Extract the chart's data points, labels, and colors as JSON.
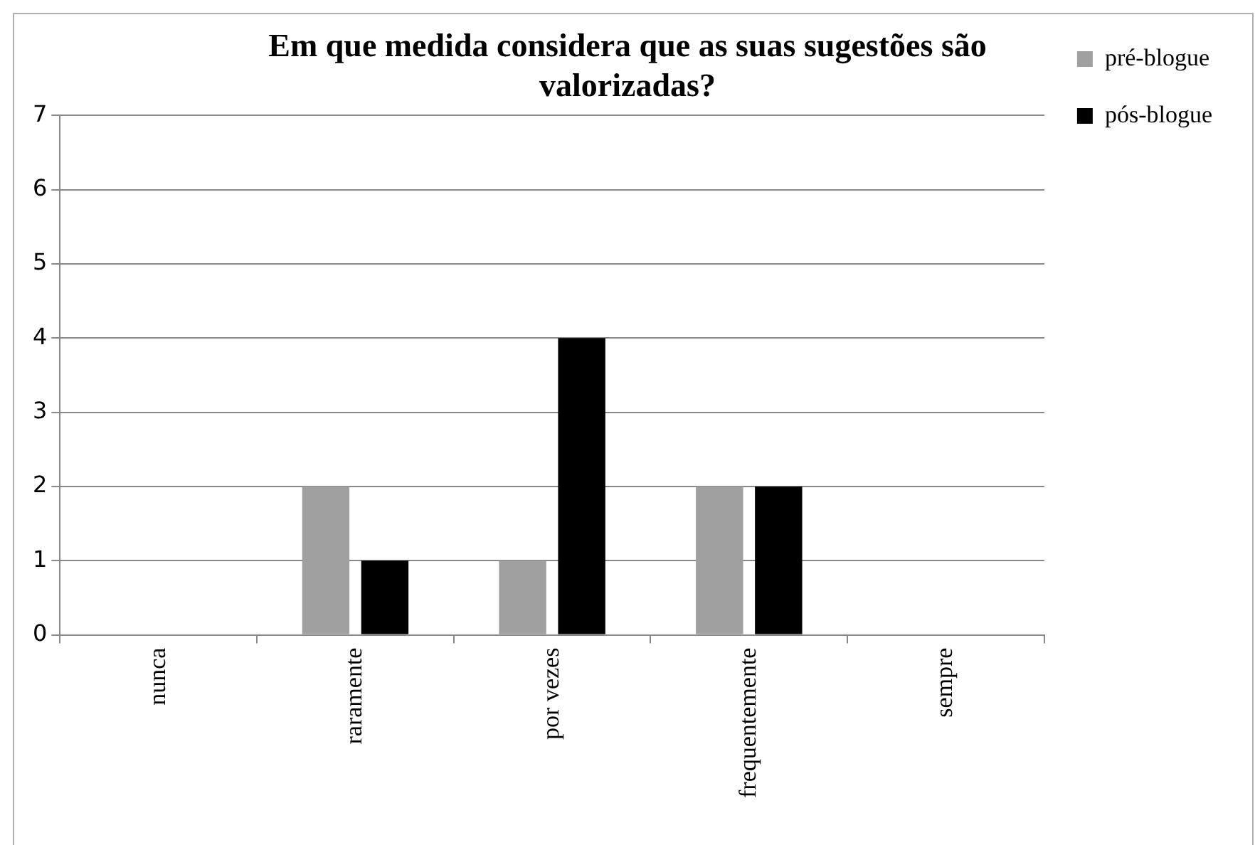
{
  "chart_data": {
    "type": "bar",
    "title": "Em que medida considera que as suas sugestões são valorizadas?",
    "categories": [
      "nunca",
      "raramente",
      "por vezes",
      "frequentemente",
      "sempre"
    ],
    "series": [
      {
        "name": "pré-blogue",
        "color": "#a0a0a0",
        "values": [
          0,
          2,
          1,
          2,
          0
        ]
      },
      {
        "name": "pós-blogue",
        "color": "#000000",
        "values": [
          0,
          1,
          4,
          2,
          0
        ]
      }
    ],
    "ylim": [
      0,
      7
    ],
    "yticks": [
      0,
      1,
      2,
      3,
      4,
      5,
      6,
      7
    ],
    "grid": "y",
    "legend": "right"
  }
}
